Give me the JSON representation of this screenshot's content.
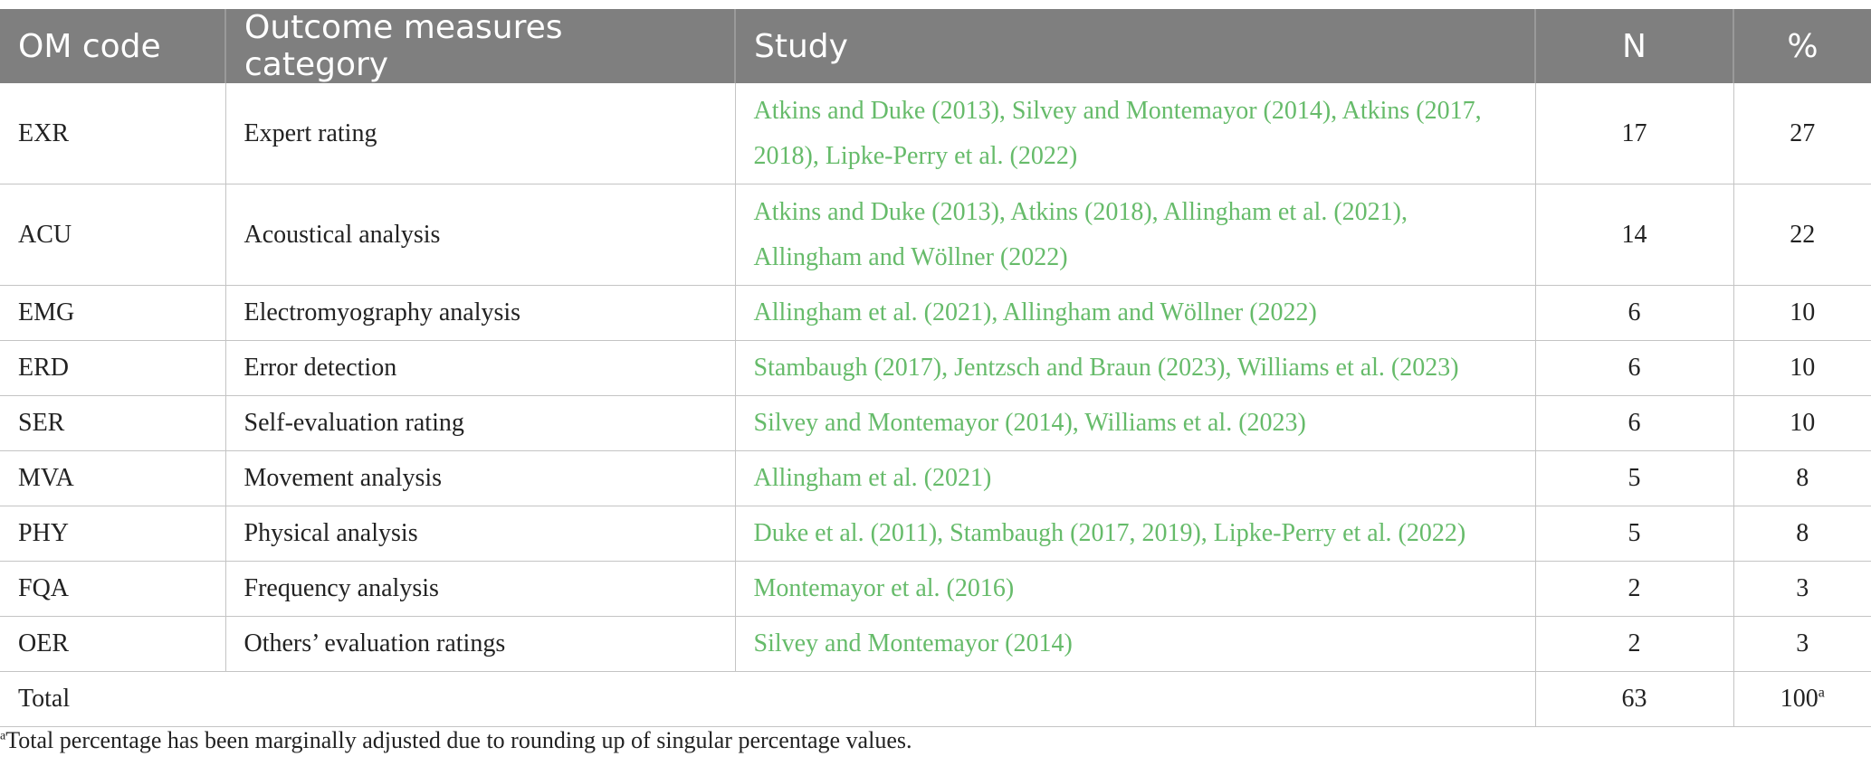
{
  "table": {
    "headers": [
      "OM code",
      "Outcome measures category",
      "Study",
      "N",
      "%"
    ],
    "rows": [
      {
        "code": "EXR",
        "category": "Expert rating",
        "study": "Atkins and Duke (2013), Silvey and Montemayor (2014), Atkins (2017, 2018), Lipke-Perry et al. (2022)",
        "n": "17",
        "pct": "27"
      },
      {
        "code": "ACU",
        "category": "Acoustical analysis",
        "study": "Atkins and Duke (2013), Atkins (2018), Allingham et al. (2021), Allingham and Wöllner (2022)",
        "n": "14",
        "pct": "22"
      },
      {
        "code": "EMG",
        "category": "Electromyography analysis",
        "study": "Allingham et al. (2021), Allingham and Wöllner (2022)",
        "n": "6",
        "pct": "10"
      },
      {
        "code": "ERD",
        "category": "Error detection",
        "study": "Stambaugh (2017), Jentzsch and Braun (2023), Williams et al. (2023)",
        "n": "6",
        "pct": "10"
      },
      {
        "code": "SER",
        "category": "Self-evaluation rating",
        "study": "Silvey and Montemayor (2014), Williams et al. (2023)",
        "n": "6",
        "pct": "10"
      },
      {
        "code": "MVA",
        "category": "Movement analysis",
        "study": "Allingham et al. (2021)",
        "n": "5",
        "pct": "8"
      },
      {
        "code": "PHY",
        "category": "Physical analysis",
        "study": "Duke et al. (2011), Stambaugh (2017, 2019), Lipke-Perry et al. (2022)",
        "n": "5",
        "pct": "8"
      },
      {
        "code": "FQA",
        "category": "Frequency analysis",
        "study": "Montemayor et al. (2016)",
        "n": "2",
        "pct": "3"
      },
      {
        "code": "OER",
        "category": "Others’ evaluation ratings",
        "study": "Silvey and Montemayor (2014)",
        "n": "2",
        "pct": "3"
      }
    ],
    "total": {
      "label": "Total",
      "n": "63",
      "pct": "100",
      "pct_sup": "a"
    }
  },
  "footnote": {
    "marker": "a",
    "text": "Total percentage has been marginally adjusted due to rounding up of singular percentage values."
  },
  "colors": {
    "header_bg": "#7f7f7f",
    "link": "#66bb6a"
  }
}
